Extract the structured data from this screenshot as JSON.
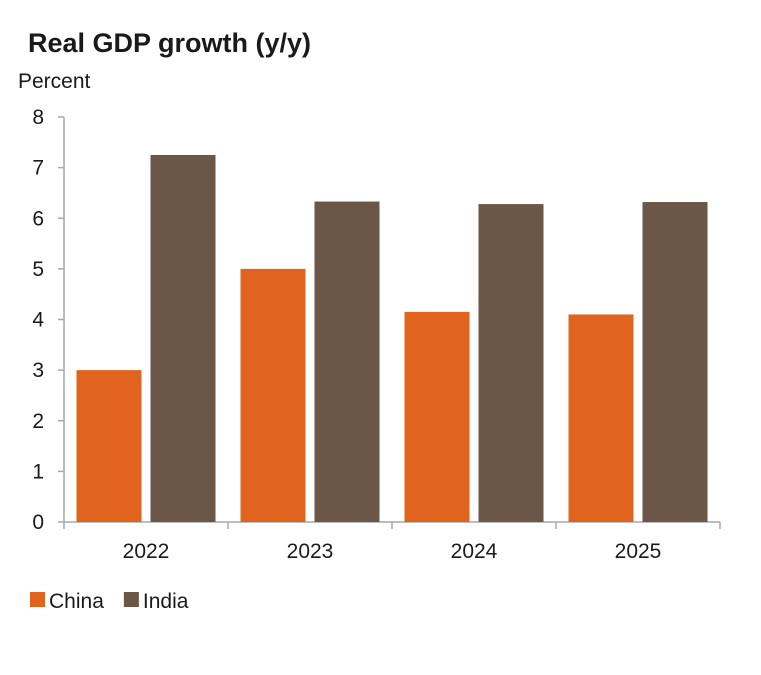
{
  "chart_data": {
    "type": "bar",
    "title": "Real GDP growth (y/y)",
    "ylabel": "Percent",
    "xlabel": "",
    "categories": [
      "2022",
      "2023",
      "2024",
      "2025"
    ],
    "series": [
      {
        "name": "China",
        "values": [
          3.0,
          5.0,
          4.15,
          4.1
        ],
        "color": "#e0631e"
      },
      {
        "name": "India",
        "values": [
          7.25,
          6.33,
          6.28,
          6.32
        ],
        "color": "#6b5647"
      }
    ],
    "ylim": [
      0,
      8
    ],
    "yticks": [
      "0",
      "1",
      "2",
      "3",
      "4",
      "5",
      "6",
      "7",
      "8"
    ],
    "grid": false,
    "legend": "bottom-left"
  }
}
